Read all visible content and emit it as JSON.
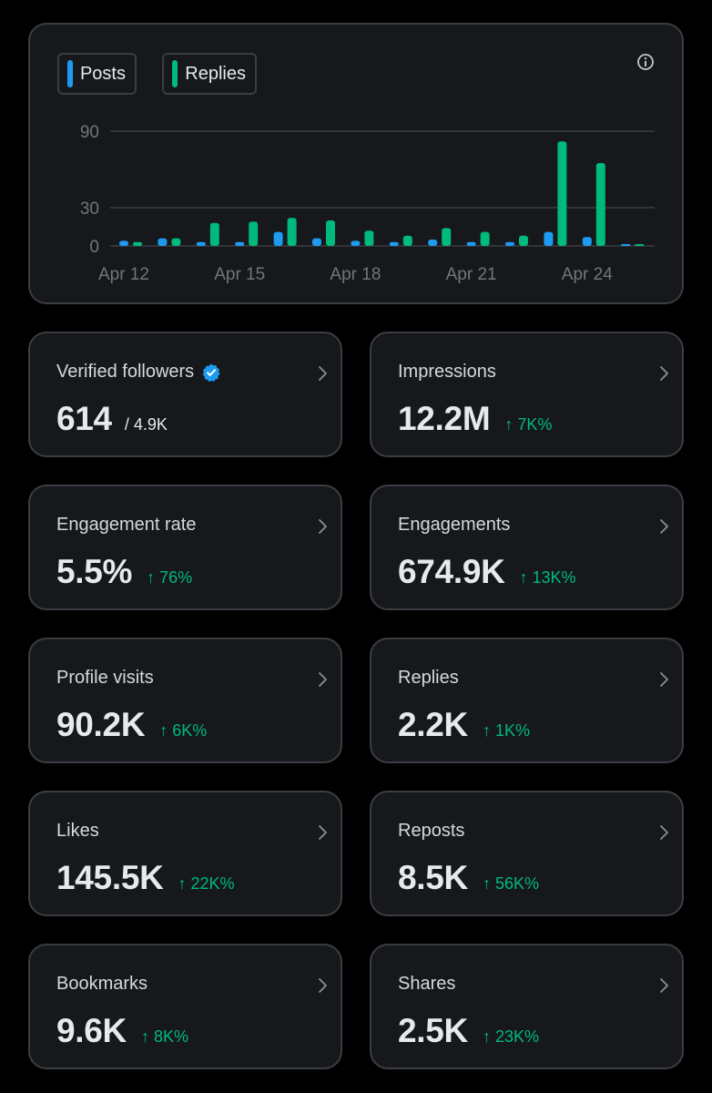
{
  "legend": {
    "posts_label": "Posts",
    "replies_label": "Replies"
  },
  "colors": {
    "posts": "#1d9bf0",
    "replies": "#00ba7c",
    "delta": "#00ba7c",
    "card_bg": "#16181c",
    "card_border": "#3a3d41"
  },
  "icons": {
    "info": "info-icon",
    "chevron": "chevron-right-icon",
    "verified": "verified-badge-icon",
    "arrow": "arrow-up-icon"
  },
  "chart_data": {
    "type": "bar",
    "title": "",
    "xlabel": "",
    "ylabel": "",
    "x": [
      "Apr 12",
      "Apr 13",
      "Apr 14",
      "Apr 15",
      "Apr 16",
      "Apr 17",
      "Apr 18",
      "Apr 19",
      "Apr 20",
      "Apr 21",
      "Apr 22",
      "Apr 23",
      "Apr 24",
      "Apr 25"
    ],
    "x_tick_labels": [
      "Apr 12",
      "Apr 15",
      "Apr 18",
      "Apr 21",
      "Apr 24"
    ],
    "y_tick_labels": [
      "0",
      "30",
      "90"
    ],
    "ylim": [
      0,
      90
    ],
    "grid": true,
    "series": [
      {
        "name": "Posts",
        "values": [
          4,
          6,
          3,
          3,
          11,
          6,
          4,
          3,
          5,
          3,
          3,
          11,
          7,
          0
        ]
      },
      {
        "name": "Replies",
        "values": [
          3,
          6,
          18,
          19,
          22,
          20,
          12,
          8,
          14,
          11,
          8,
          82,
          65,
          0
        ]
      }
    ]
  },
  "metrics": [
    {
      "label": "Verified followers",
      "value": "614",
      "sub": "/ 4.9K"
    },
    {
      "label": "Impressions",
      "value": "12.2M",
      "delta": "↑ 7K%"
    },
    {
      "label": "Engagement rate",
      "value": "5.5%",
      "delta": "↑ 76%"
    },
    {
      "label": "Engagements",
      "value": "674.9K",
      "delta": "↑ 13K%"
    },
    {
      "label": "Profile visits",
      "value": "90.2K",
      "delta": "↑ 6K%"
    },
    {
      "label": "Replies",
      "value": "2.2K",
      "delta": "↑ 1K%"
    },
    {
      "label": "Likes",
      "value": "145.5K",
      "delta": "↑ 22K%"
    },
    {
      "label": "Reposts",
      "value": "8.5K",
      "delta": "↑ 56K%"
    },
    {
      "label": "Bookmarks",
      "value": "9.6K",
      "delta": "↑ 8K%"
    },
    {
      "label": "Shares",
      "value": "2.5K",
      "delta": "↑ 23K%"
    }
  ]
}
